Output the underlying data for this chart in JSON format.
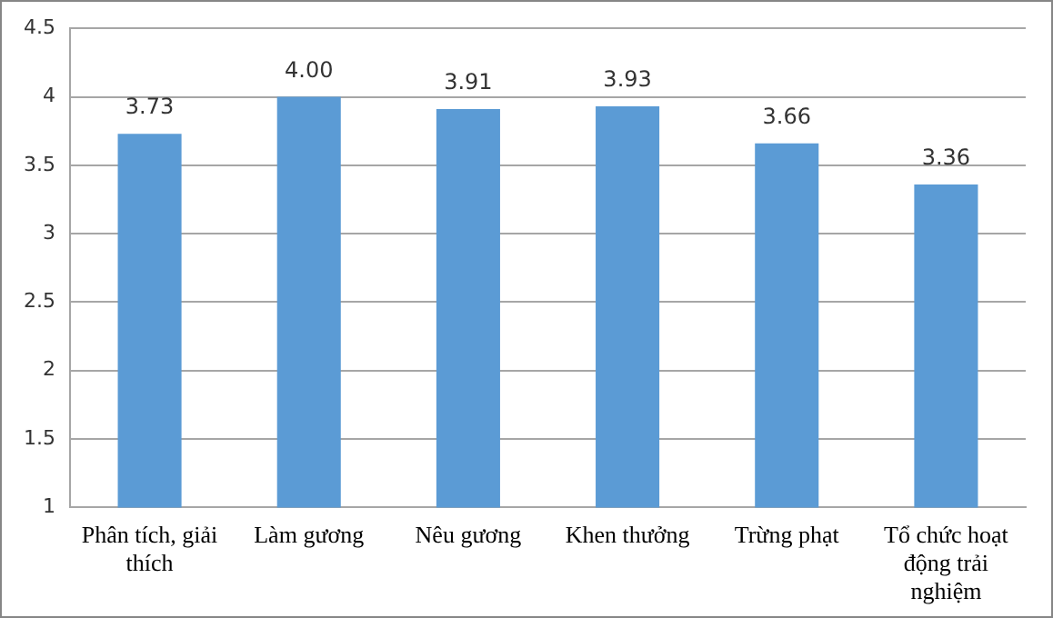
{
  "chart_data": {
    "type": "bar",
    "categories": [
      "Phân tích, giải thích",
      "Làm gương",
      "Nêu gương",
      "Khen thưởng",
      "Trừng phạt",
      "Tổ chức hoạt động trải nghiệm"
    ],
    "values": [
      3.73,
      4.0,
      3.91,
      3.93,
      3.66,
      3.36
    ],
    "value_labels": [
      "3.73",
      "4.00",
      "3.91",
      "3.93",
      "3.66",
      "3.36"
    ],
    "color": "#5b9bd5",
    "ylim": [
      1,
      4.5
    ],
    "yticks": [
      1,
      1.5,
      2,
      2.5,
      3,
      3.5,
      4,
      4.5
    ],
    "grid": "y",
    "legend": false
  }
}
